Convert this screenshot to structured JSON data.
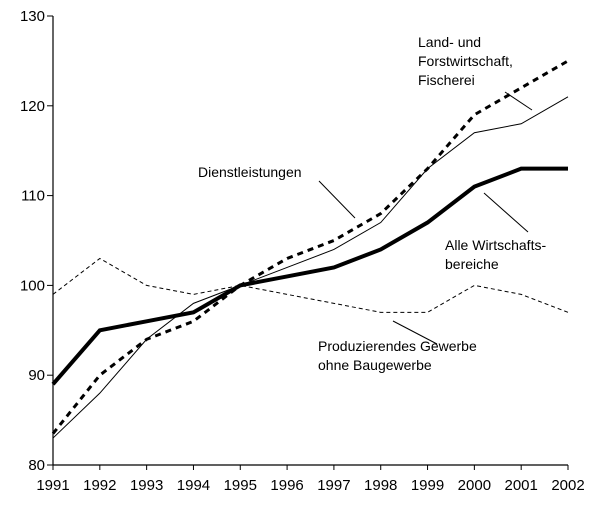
{
  "chart_data": {
    "type": "line",
    "x": [
      1991,
      1992,
      1993,
      1994,
      1995,
      1996,
      1997,
      1998,
      1999,
      2000,
      2001,
      2002
    ],
    "xlim": [
      1991,
      2002
    ],
    "xticks": [
      1991,
      1992,
      1993,
      1994,
      1995,
      1996,
      1997,
      1998,
      1999,
      2000,
      2001,
      2002
    ],
    "ylim": [
      80,
      130
    ],
    "yticks": [
      80,
      90,
      100,
      110,
      120,
      130
    ],
    "series": [
      {
        "label": [
          "Alle Wirtschafts-",
          "bereiche"
        ],
        "color": "#000000",
        "width": 4,
        "dash": false,
        "values": [
          89,
          95,
          96,
          97,
          100,
          101,
          102,
          104,
          107,
          111,
          113,
          113
        ]
      },
      {
        "label": [
          "Land- und",
          "Forstwirtschaft,",
          "Fischerei"
        ],
        "color": "#000000",
        "width": 1,
        "dash": false,
        "values": [
          83,
          88,
          94,
          98,
          100,
          102,
          104,
          107,
          113,
          117,
          118,
          121
        ]
      },
      {
        "label": [
          "Dienstleistungen"
        ],
        "color": "#000000",
        "width": 3,
        "dash": true,
        "values": [
          83.5,
          90,
          94,
          96,
          100,
          103,
          105,
          108,
          113,
          119,
          122,
          125
        ]
      },
      {
        "label": [
          "Produzierendes Gewerbe",
          "ohne Baugewerbe"
        ],
        "color": "#000000",
        "width": 1,
        "dash": true,
        "values": [
          99,
          103,
          100,
          99,
          100,
          99,
          98,
          97,
          97,
          100,
          99,
          97
        ]
      }
    ]
  }
}
